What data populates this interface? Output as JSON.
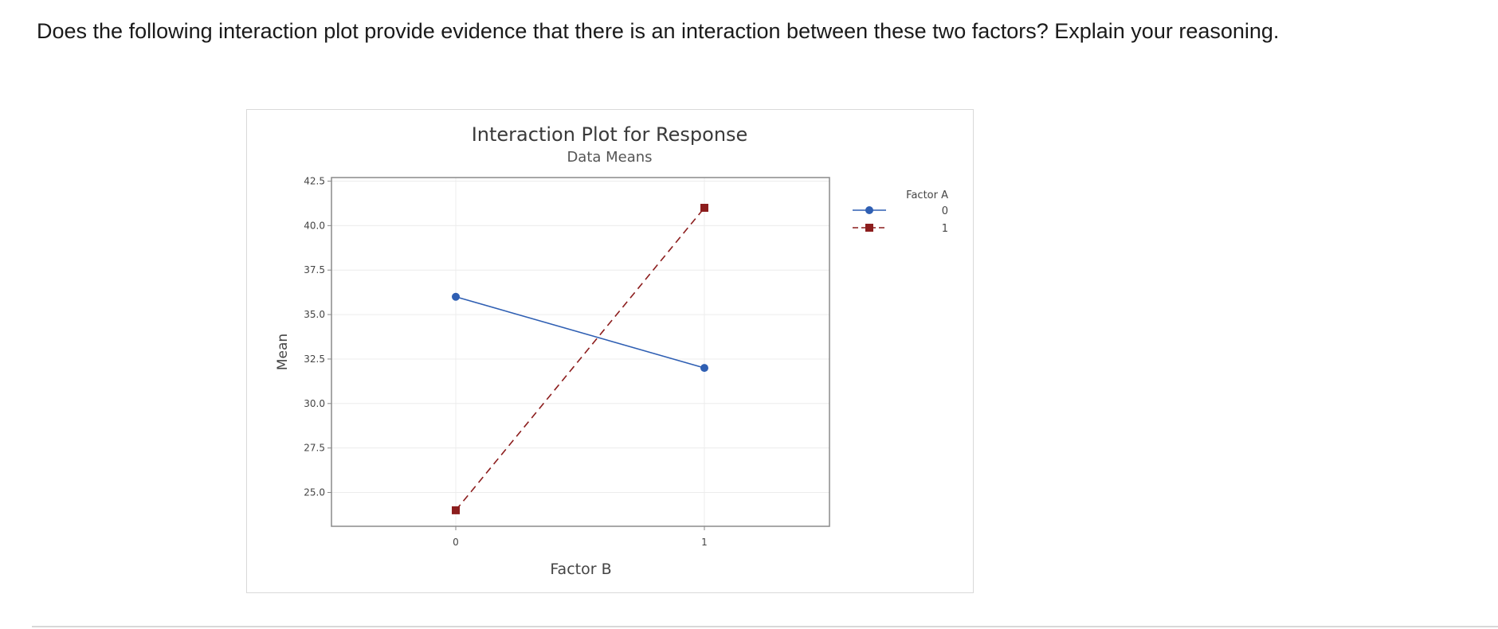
{
  "question": {
    "text": "Does the following interaction plot provide evidence that there is an interaction between these two factors? Explain your reasoning."
  },
  "colors": {
    "series_0": "#2f5fb3",
    "series_1": "#8c1d1d",
    "grid": "#ececec",
    "axis": "#7f7f7f",
    "frame": "#d9d9d9"
  },
  "chart_data": {
    "type": "line",
    "title": "Interaction Plot for Response",
    "subtitle": "Data Means",
    "xlabel": "Factor B",
    "ylabel": "Mean",
    "categories": [
      "0",
      "1"
    ],
    "ylim": [
      23.1,
      42.7
    ],
    "yticks": [
      25.0,
      27.5,
      30.0,
      32.5,
      35.0,
      37.5,
      40.0,
      42.5
    ],
    "ytick_labels": [
      "25.0",
      "27.5",
      "30.0",
      "32.5",
      "35.0",
      "37.5",
      "40.0",
      "42.5"
    ],
    "grid": true,
    "legend": {
      "title": "Factor A",
      "placement": "right"
    },
    "series": [
      {
        "name": "0",
        "values": [
          36.0,
          32.0
        ],
        "marker": "circle",
        "line_style": "solid",
        "color": "#2f5fb3"
      },
      {
        "name": "1",
        "values": [
          24.0,
          41.0
        ],
        "marker": "square",
        "line_style": "dashed",
        "color": "#8c1d1d"
      }
    ]
  }
}
